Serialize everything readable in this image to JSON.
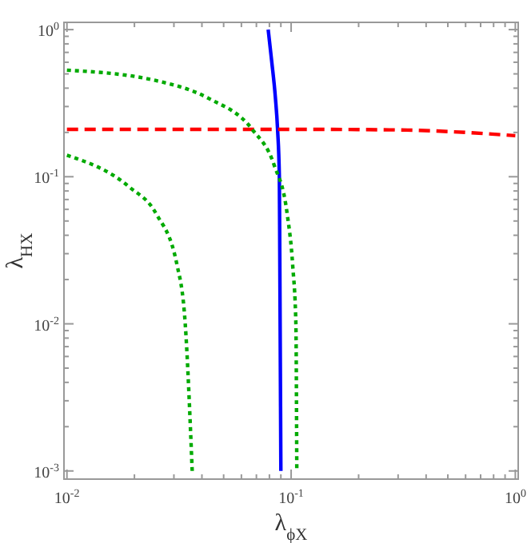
{
  "chart_data": {
    "type": "line",
    "xlabel": "λ$_{ϕX}$",
    "ylabel": "λ$_{HX}$",
    "log": "xy",
    "grid": false,
    "xlim": [
      0.0097,
      1.03
    ],
    "ylim": [
      0.00088,
      1.12
    ],
    "xticks": [
      {
        "value": 0.01,
        "label": "10$^{-2}$"
      },
      {
        "value": 0.02,
        "label": null
      },
      {
        "value": 0.03,
        "label": null
      },
      {
        "value": 0.04,
        "label": null
      },
      {
        "value": 0.05,
        "label": null
      },
      {
        "value": 0.06,
        "label": null
      },
      {
        "value": 0.07,
        "label": null
      },
      {
        "value": 0.08,
        "label": null
      },
      {
        "value": 0.09,
        "label": null
      },
      {
        "value": 0.1,
        "label": "10$^{-1}$"
      },
      {
        "value": 0.2,
        "label": null
      },
      {
        "value": 0.3,
        "label": null
      },
      {
        "value": 0.4,
        "label": null
      },
      {
        "value": 0.5,
        "label": null
      },
      {
        "value": 0.6,
        "label": null
      },
      {
        "value": 0.7,
        "label": null
      },
      {
        "value": 0.8,
        "label": null
      },
      {
        "value": 0.9,
        "label": null
      },
      {
        "value": 1,
        "label": "10$^{0}$"
      }
    ],
    "yticks": [
      {
        "value": 0.001,
        "label": "10$^{-3}$"
      },
      {
        "value": 0.002,
        "label": null
      },
      {
        "value": 0.003,
        "label": null
      },
      {
        "value": 0.004,
        "label": null
      },
      {
        "value": 0.005,
        "label": null
      },
      {
        "value": 0.006,
        "label": null
      },
      {
        "value": 0.007,
        "label": null
      },
      {
        "value": 0.008,
        "label": null
      },
      {
        "value": 0.009,
        "label": null
      },
      {
        "value": 0.01,
        "label": "10$^{-2}$"
      },
      {
        "value": 0.02,
        "label": null
      },
      {
        "value": 0.03,
        "label": null
      },
      {
        "value": 0.04,
        "label": null
      },
      {
        "value": 0.05,
        "label": null
      },
      {
        "value": 0.06,
        "label": null
      },
      {
        "value": 0.07,
        "label": null
      },
      {
        "value": 0.08,
        "label": null
      },
      {
        "value": 0.09,
        "label": null
      },
      {
        "value": 0.1,
        "label": "10$^{-1}$"
      },
      {
        "value": 0.2,
        "label": null
      },
      {
        "value": 0.3,
        "label": null
      },
      {
        "value": 0.4,
        "label": null
      },
      {
        "value": 0.5,
        "label": null
      },
      {
        "value": 0.6,
        "label": null
      },
      {
        "value": 0.7,
        "label": null
      },
      {
        "value": 0.8,
        "label": null
      },
      {
        "value": 0.9,
        "label": null
      },
      {
        "value": 1,
        "label": "10$^{0}$"
      }
    ],
    "series": [
      {
        "color": "#0000ff",
        "line_style": "solid",
        "x": [
          0.079,
          0.082,
          0.085,
          0.087,
          0.0886,
          0.089,
          0.09
        ],
        "values": [
          1,
          0.6,
          0.35,
          0.21,
          0.1,
          0.03,
          0.001
        ]
      },
      {
        "color": "#ff0000",
        "line_style": "dashed",
        "x": [
          0.01,
          0.1,
          0.3,
          0.6,
          1
        ],
        "values": [
          0.21,
          0.21,
          0.208,
          0.2,
          0.19
        ]
      },
      {
        "color": "#00aa00",
        "line_style": "dotted",
        "x": [
          0.01,
          0.025,
          0.043,
          0.067,
          0.084,
          0.096,
          0.1016,
          0.105,
          0.106
        ],
        "values": [
          0.53,
          0.45,
          0.34,
          0.21,
          0.12,
          0.056,
          0.025,
          0.01,
          0.001
        ]
      },
      {
        "color": "#00aa00",
        "line_style": "dotted",
        "x": [
          0.01,
          0.019,
          0.025,
          0.031,
          0.0337,
          0.0362
        ],
        "values": [
          0.14,
          0.085,
          0.056,
          0.025,
          0.01,
          0.001
        ]
      }
    ]
  }
}
